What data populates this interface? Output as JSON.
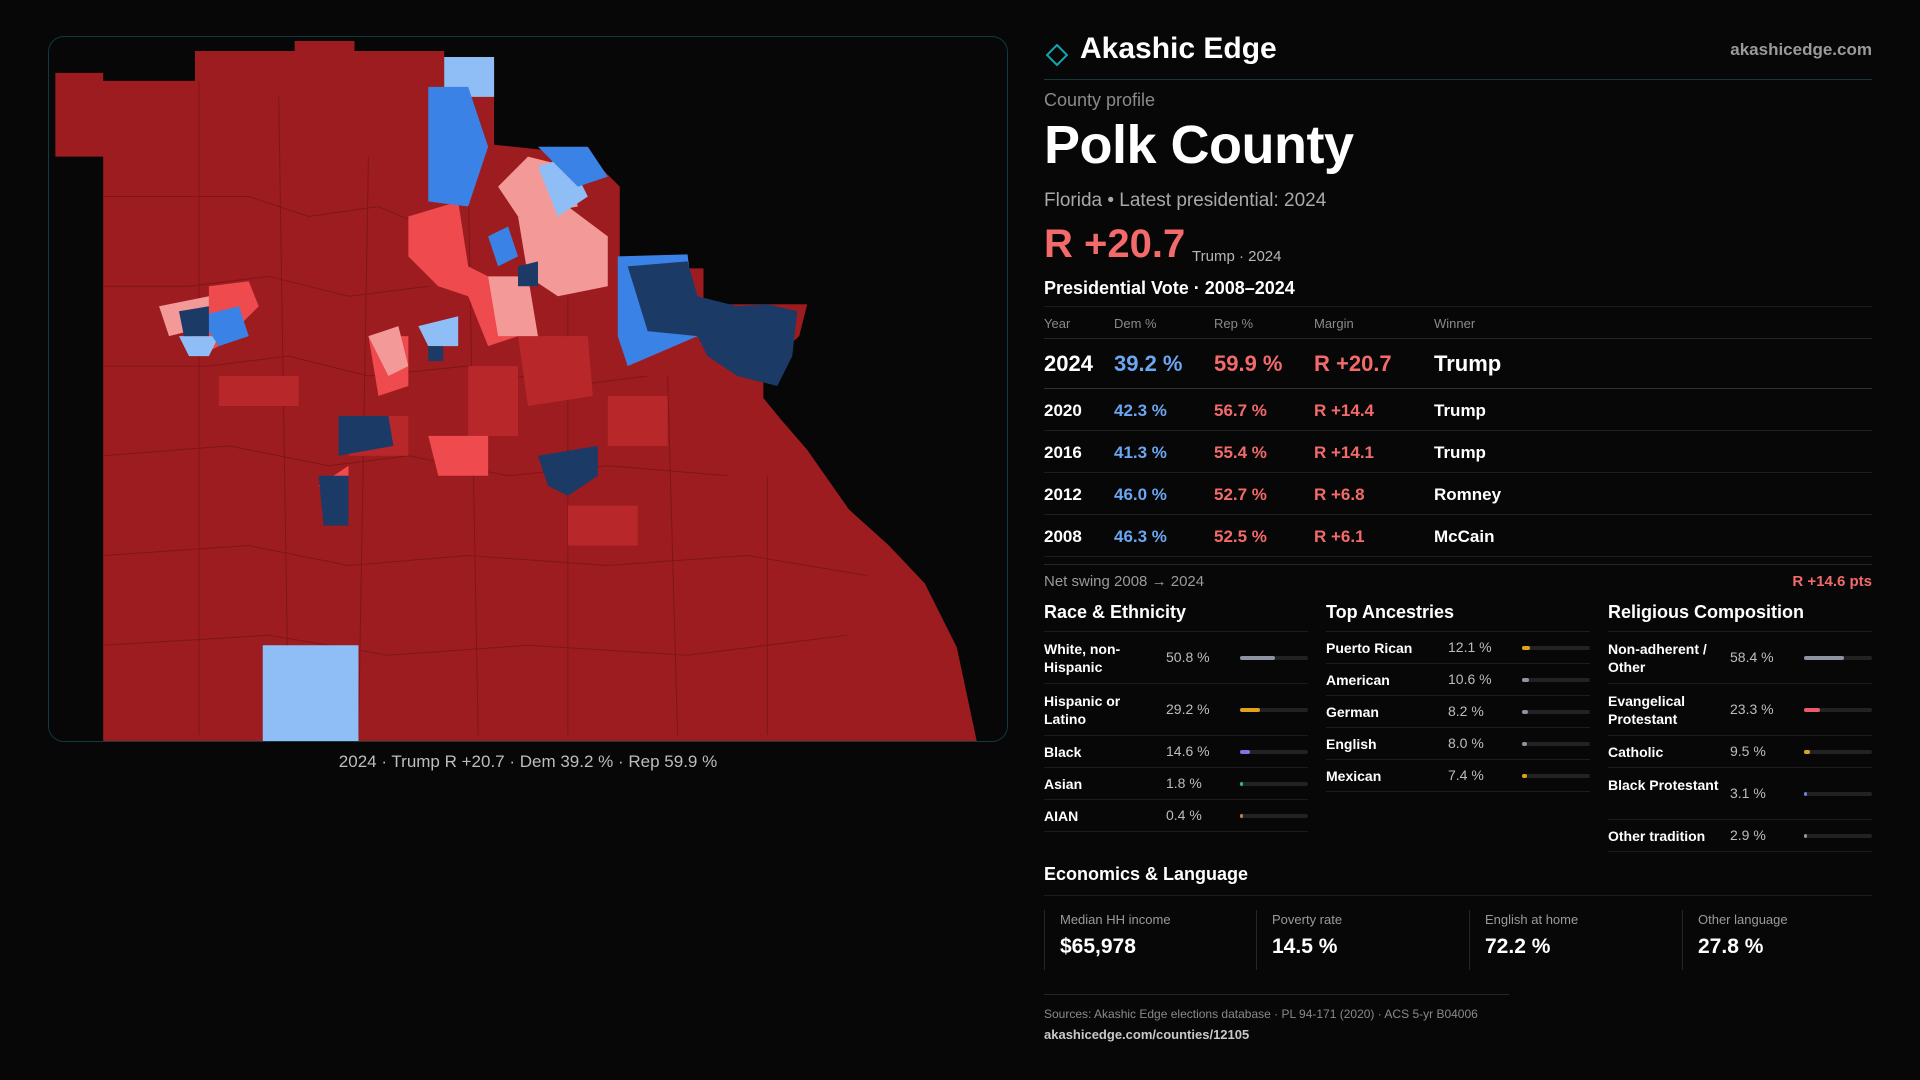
{
  "brand": {
    "name": "Akashic Edge",
    "url": "akashicedge.com",
    "accent": "#14a3b0"
  },
  "profile": {
    "kicker": "County profile",
    "county": "Polk County",
    "subtitle": "Florida • Latest presidential: 2024",
    "margin": "R +20.7",
    "margin_note": "Trump · 2024"
  },
  "map": {
    "caption": "2024 · Trump R +20.7 · Dem 39.2 % · Rep 59.9 %",
    "colors": {
      "safe_r": "#9c1c1f",
      "likely_r": "#b8282b",
      "lean_r": "#ef4a4e",
      "tilt_r": "#f39a98",
      "tilt_d": "#8fbef7",
      "lean_d": "#3b82e6",
      "safe_d": "#1c3a66"
    }
  },
  "presidential": {
    "title": "Presidential Vote · 2008–2024",
    "headers": {
      "year": "Year",
      "dem": "Dem %",
      "rep": "Rep %",
      "margin": "Margin",
      "winner": "Winner"
    },
    "rows": [
      {
        "year": "2024",
        "dem": "39.2 %",
        "rep": "59.9 %",
        "margin": "R +20.7",
        "winner": "Trump"
      },
      {
        "year": "2020",
        "dem": "42.3 %",
        "rep": "56.7 %",
        "margin": "R +14.4",
        "winner": "Trump"
      },
      {
        "year": "2016",
        "dem": "41.3 %",
        "rep": "55.4 %",
        "margin": "R +14.1",
        "winner": "Trump"
      },
      {
        "year": "2012",
        "dem": "46.0 %",
        "rep": "52.7 %",
        "margin": "R +6.8",
        "winner": "Romney"
      },
      {
        "year": "2008",
        "dem": "46.3 %",
        "rep": "52.5 %",
        "margin": "R +6.1",
        "winner": "McCain"
      }
    ],
    "swing_label": "Net swing 2008 → 2024",
    "swing_value": "R +14.6 pts"
  },
  "race": {
    "title": "Race & Ethnicity",
    "items": [
      {
        "label": "White, non-Hispanic",
        "pct": "50.8 %",
        "value": 50.8,
        "color": "#8d93a0",
        "lines": 2
      },
      {
        "label": "Hispanic or Latino",
        "pct": "29.2 %",
        "value": 29.2,
        "color": "#e1a21b",
        "lines": 2
      },
      {
        "label": "Black",
        "pct": "14.6 %",
        "value": 14.6,
        "color": "#8b6fe0",
        "lines": 1
      },
      {
        "label": "Asian",
        "pct": "1.8 %",
        "value": 1.8,
        "color": "#22b8a6",
        "lines": 1
      },
      {
        "label": "AIAN",
        "pct": "0.4 %",
        "value": 0.4,
        "color": "#d27a3a",
        "lines": 1
      }
    ]
  },
  "ancestry": {
    "title": "Top Ancestries",
    "items": [
      {
        "label": "Puerto Rican",
        "pct": "12.1 %",
        "value": 12.1,
        "color": "#e1a21b",
        "lines": 1
      },
      {
        "label": "American",
        "pct": "10.6 %",
        "value": 10.6,
        "color": "#8d93a0",
        "lines": 1
      },
      {
        "label": "German",
        "pct": "8.2 %",
        "value": 8.2,
        "color": "#8d93a0",
        "lines": 1
      },
      {
        "label": "English",
        "pct": "8.0 %",
        "value": 8.0,
        "color": "#8d93a0",
        "lines": 1
      },
      {
        "label": "Mexican",
        "pct": "7.4 %",
        "value": 7.4,
        "color": "#e1a21b",
        "lines": 1
      }
    ]
  },
  "religion": {
    "title": "Religious Composition",
    "items": [
      {
        "label": "Non-adherent / Other",
        "pct": "58.4 %",
        "value": 58.4,
        "color": "#8d93a0",
        "lines": 2
      },
      {
        "label": "Evangelical Protestant",
        "pct": "23.3 %",
        "value": 23.3,
        "color": "#ef5a6a",
        "lines": 2
      },
      {
        "label": "Catholic",
        "pct": "9.5 %",
        "value": 9.5,
        "color": "#e1a21b",
        "lines": 1
      },
      {
        "label": "Black Protestant",
        "pct": "3.1 %",
        "value": 3.1,
        "color": "#6a7fe0",
        "lines": 2
      },
      {
        "label": "Other tradition",
        "pct": "2.9 %",
        "value": 2.9,
        "color": "#8d93a0",
        "lines": 1
      }
    ]
  },
  "economics": {
    "title": "Economics & Language",
    "items": [
      {
        "label": "Median HH income",
        "value": "$65,978"
      },
      {
        "label": "Poverty rate",
        "value": "14.5 %"
      },
      {
        "label": "English at home",
        "value": "72.2 %"
      },
      {
        "label": "Other language",
        "value": "27.8 %"
      }
    ]
  },
  "sources": {
    "text": "Sources: Akashic Edge elections database · PL 94-171 (2020) · ACS 5-yr B04006",
    "url": "akashicedge.com/counties/12105"
  }
}
